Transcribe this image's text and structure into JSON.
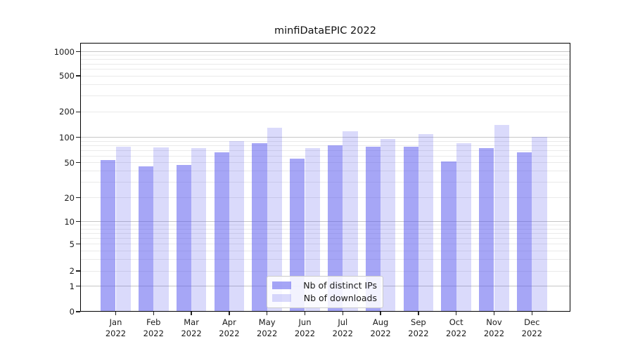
{
  "chart_data": {
    "type": "bar",
    "title": "minfiDataEPIC 2022",
    "categories": [
      "Jan",
      "Feb",
      "Mar",
      "Apr",
      "May",
      "Jun",
      "Jul",
      "Aug",
      "Sep",
      "Oct",
      "Nov",
      "Dec"
    ],
    "year_label": "2022",
    "series": [
      {
        "name": "Nb of distinct IPs",
        "values": [
          53,
          45,
          47,
          66,
          85,
          56,
          80,
          78,
          78,
          51,
          74,
          66
        ]
      },
      {
        "name": "Nb of downloads",
        "values": [
          77,
          76,
          75,
          90,
          129,
          74,
          118,
          96,
          110,
          85,
          141,
          101
        ]
      }
    ],
    "y_ticks": [
      0,
      1,
      2,
      5,
      10,
      20,
      50,
      100,
      200,
      500,
      1000
    ],
    "scale": "symlog",
    "ylim": [
      0,
      1300
    ],
    "grid": true,
    "legend_position": "lower center",
    "colors": {
      "bar_base": "#5555ee",
      "ips_alpha": 0.52,
      "downloads_alpha": 0.22,
      "major_grid": "#c6c6c6",
      "minor_grid": "#eaeaea",
      "frame": "#000000",
      "text": "#1a1a1a"
    }
  }
}
